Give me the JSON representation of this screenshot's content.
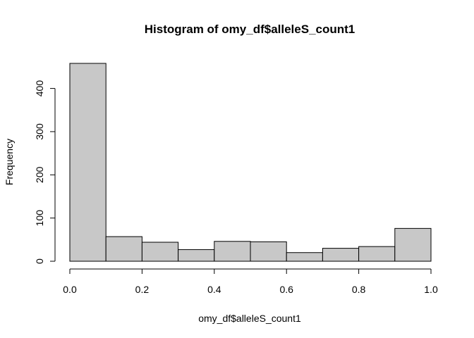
{
  "chart_data": {
    "type": "bar",
    "title": "Histogram of omy_df$alleleS_count1",
    "xlabel": "omy_df$alleleS_count1",
    "ylabel": "Frequency",
    "bins": [
      {
        "x0": 0.0,
        "x1": 0.1,
        "count": 458
      },
      {
        "x0": 0.1,
        "x1": 0.2,
        "count": 57
      },
      {
        "x0": 0.2,
        "x1": 0.3,
        "count": 44
      },
      {
        "x0": 0.3,
        "x1": 0.4,
        "count": 27
      },
      {
        "x0": 0.4,
        "x1": 0.5,
        "count": 46
      },
      {
        "x0": 0.5,
        "x1": 0.6,
        "count": 45
      },
      {
        "x0": 0.6,
        "x1": 0.7,
        "count": 20
      },
      {
        "x0": 0.7,
        "x1": 0.8,
        "count": 30
      },
      {
        "x0": 0.8,
        "x1": 0.9,
        "count": 34
      },
      {
        "x0": 0.9,
        "x1": 1.0,
        "count": 76
      }
    ],
    "xlim": [
      0,
      1
    ],
    "ylim": [
      0,
      458
    ],
    "x_ticks": [
      0.0,
      0.2,
      0.4,
      0.6,
      0.8,
      1.0
    ],
    "x_tick_labels": [
      "0.0",
      "0.2",
      "0.4",
      "0.6",
      "0.8",
      "1.0"
    ],
    "y_ticks": [
      0,
      100,
      200,
      300,
      400
    ],
    "y_tick_labels": [
      "0",
      "100",
      "200",
      "300",
      "400"
    ],
    "bar_color": "#c8c8c8",
    "grid": false,
    "legend": "none"
  }
}
